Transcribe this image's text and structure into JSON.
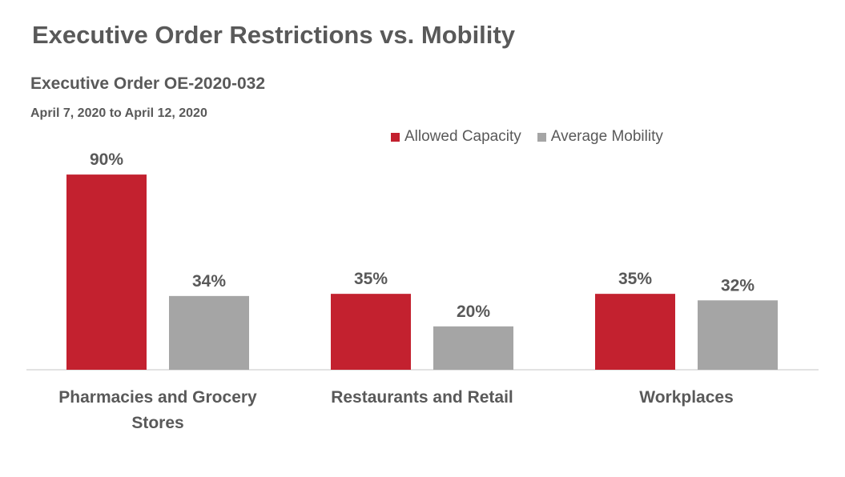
{
  "header": {
    "title": "Executive Order Restrictions vs. Mobility",
    "subtitle": "Executive Order OE-2020-032",
    "date_range": "April 7, 2020 to April 12, 2020"
  },
  "colors": {
    "allowed": "#C3212F",
    "mobility": "#A5A5A5",
    "text": "#595959",
    "axis": "#D9D9D9"
  },
  "chart_data": {
    "type": "bar",
    "categories": [
      "Pharmacies and Grocery Stores",
      "Restaurants and Retail",
      "Workplaces"
    ],
    "category_lines": [
      [
        "Pharmacies and Grocery",
        "Stores"
      ],
      [
        "Restaurants and Retail"
      ],
      [
        "Workplaces"
      ]
    ],
    "series": [
      {
        "name": "Allowed Capacity",
        "values": [
          90,
          35,
          35
        ],
        "labels": [
          "90%",
          "35%",
          "35%"
        ]
      },
      {
        "name": "Average Mobility",
        "values": [
          34,
          20,
          32
        ],
        "labels": [
          "34%",
          "20%",
          "32%"
        ]
      }
    ],
    "ylim": [
      0,
      100
    ],
    "legend": "top-right",
    "grid": false
  }
}
